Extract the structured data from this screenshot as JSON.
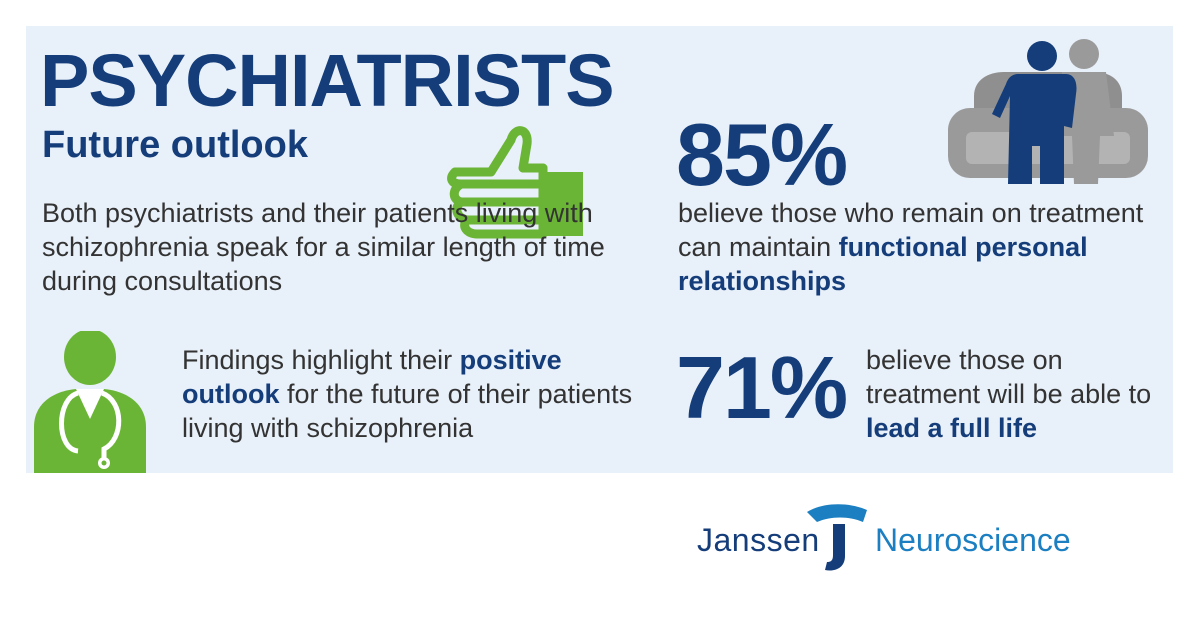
{
  "header": {
    "title": "PSYCHIATRISTS",
    "subtitle": "Future outlook"
  },
  "intro": {
    "text": "Both psychiatrists and their patients living with schizophrenia speak for a similar length of time during consultations"
  },
  "findings": {
    "pre": "Findings highlight their ",
    "highlight": "positive outlook",
    "post": " for the future of their patients living with schizophrenia"
  },
  "stat_85": {
    "value": "85%",
    "pre": "believe those who remain on treatment can maintain ",
    "highlight": "functional personal relationships"
  },
  "stat_71": {
    "value": "71%",
    "pre": "believe those on treatment will be able to ",
    "highlight": "lead a full life"
  },
  "logo": {
    "brand": "Janssen",
    "division": "Neuroscience"
  },
  "icons": {
    "thumb": "thumbs-up-icon",
    "doctor": "doctor-icon",
    "people": "people-sofa-icon"
  },
  "colors": {
    "panel": "#e8f0f9",
    "navy": "#143d7a",
    "green": "#6bb536",
    "grey": "#9a9a9a",
    "logo_blue": "#1b7fc1"
  }
}
